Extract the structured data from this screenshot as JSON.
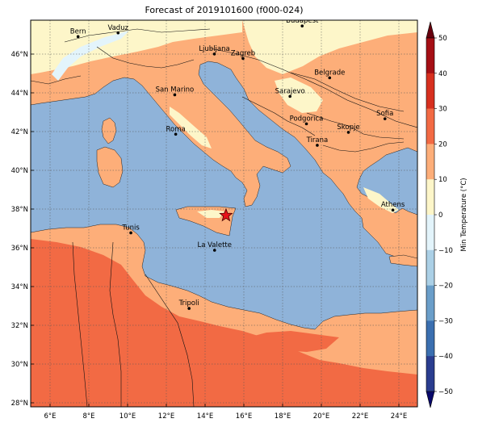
{
  "title": "Forecast of 2019101600 (f000-024)",
  "map": {
    "lon_range": [
      5,
      25
    ],
    "lat_range": [
      27.8,
      47.8
    ],
    "x_ticks": [
      "6°E",
      "8°E",
      "10°E",
      "12°E",
      "14°E",
      "16°E",
      "18°E",
      "20°E",
      "22°E",
      "24°E"
    ],
    "y_ticks": [
      "28°N",
      "30°N",
      "32°N",
      "34°N",
      "36°N",
      "38°N",
      "40°N",
      "42°N",
      "44°N",
      "46°N"
    ],
    "grid": true,
    "sea_color": "#8fb3d9",
    "colors": {
      "0_10": "#fdf6c9",
      "10_20": "#fdae79",
      "20_30": "#f26a44",
      "neg_10_0": "#e3f4fb"
    },
    "cities": [
      {
        "name": "Bern",
        "lon": 7.45,
        "lat": 46.95
      },
      {
        "name": "Vaduz",
        "lon": 9.52,
        "lat": 47.14
      },
      {
        "name": "Budapest",
        "lon": 19.04,
        "lat": 47.5
      },
      {
        "name": "Ljubljana",
        "lon": 14.5,
        "lat": 46.05
      },
      {
        "name": "Zagreb",
        "lon": 15.98,
        "lat": 45.82
      },
      {
        "name": "Belgrade",
        "lon": 20.46,
        "lat": 44.82
      },
      {
        "name": "San Marino",
        "lon": 12.45,
        "lat": 43.94
      },
      {
        "name": "Sarajevo",
        "lon": 18.41,
        "lat": 43.86
      },
      {
        "name": "Sofia",
        "lon": 23.32,
        "lat": 42.7
      },
      {
        "name": "Podgorica",
        "lon": 19.26,
        "lat": 42.44
      },
      {
        "name": "Skopje",
        "lon": 21.43,
        "lat": 42.0
      },
      {
        "name": "Roma",
        "lon": 12.5,
        "lat": 41.9
      },
      {
        "name": "Tirana",
        "lon": 19.82,
        "lat": 41.33
      },
      {
        "name": "Athens",
        "lon": 23.73,
        "lat": 37.98
      },
      {
        "name": "Tunis",
        "lon": 10.18,
        "lat": 36.8
      },
      {
        "name": "La Valette",
        "lon": 14.51,
        "lat": 35.9
      },
      {
        "name": "Tripoli",
        "lon": 13.19,
        "lat": 32.89
      }
    ],
    "marker": {
      "symbol": "star",
      "lon": 15.1,
      "lat": 37.7,
      "color": "#e8121a"
    }
  },
  "colorbar": {
    "label": "Min Temperature (°C)",
    "ticks": [
      "50",
      "40",
      "30",
      "20",
      "10",
      "0",
      "−10",
      "−20",
      "−30",
      "−40",
      "−50"
    ],
    "bands": [
      "#67000d",
      "#a50f15",
      "#d7301f",
      "#f26a44",
      "#fdae79",
      "#fdf6c9",
      "#e3f4fb",
      "#abd0e6",
      "#6a9ec9",
      "#3b6fb0",
      "#2a3d8f"
    ],
    "under_color": "#08086b",
    "over_color": "#67000d"
  }
}
